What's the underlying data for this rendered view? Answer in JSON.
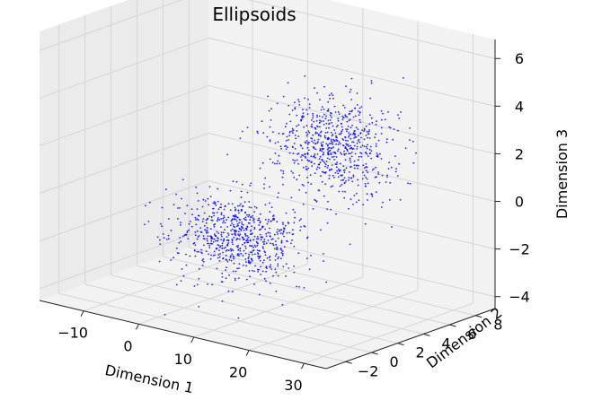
{
  "chart_data": {
    "type": "scatter",
    "projection": "3d",
    "title": "Ellipsoids",
    "xlabel": "Dimension 1",
    "ylabel": "Dimension 2",
    "zlabel": "Dimension 3",
    "xlim": [
      -18,
      34
    ],
    "ylim": [
      -3.5,
      9.5
    ],
    "zlim": [
      -4.5,
      6.8
    ],
    "xticks": [
      "−10",
      "0",
      "10",
      "20",
      "30"
    ],
    "yticks": [
      "−2",
      "0",
      "2",
      "4",
      "6",
      "8"
    ],
    "zticks": [
      "−4",
      "−2",
      "0",
      "2",
      "4",
      "6"
    ],
    "grid": true,
    "marker_color": "#0000ff",
    "series": [
      {
        "center": [
          -3.2,
          5.5,
          -2.8
        ],
        "spread": [
          5.5,
          1.2,
          0.8
        ],
        "count": 700
      },
      {
        "center": [
          21.2,
          2.6,
          3.0
        ],
        "spread": [
          5.2,
          1.1,
          1.0
        ],
        "count": 700
      }
    ]
  }
}
